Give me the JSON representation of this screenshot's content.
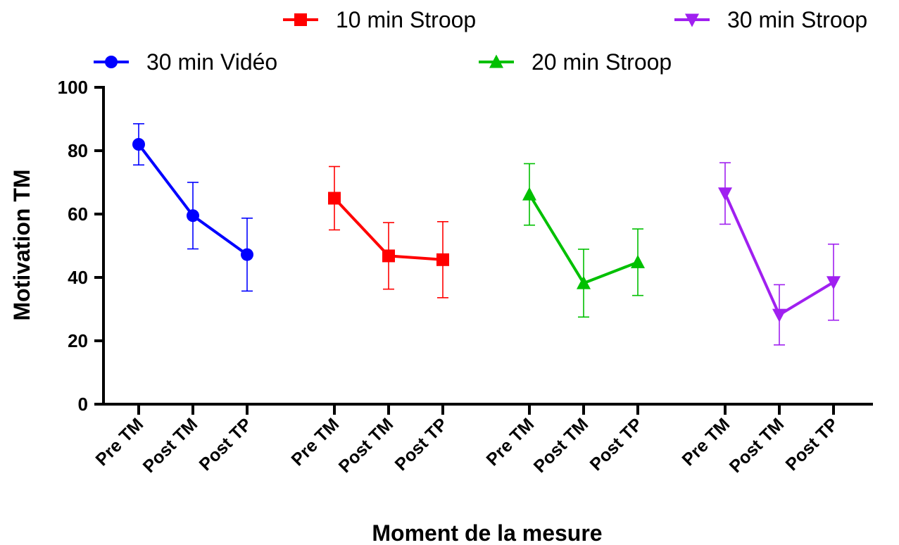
{
  "chart_data": {
    "type": "line",
    "xlabel": "Moment de la mesure",
    "ylabel": "Motivation TM",
    "ylim": [
      0,
      100
    ],
    "yticks": [
      0,
      20,
      40,
      60,
      80,
      100
    ],
    "categories": [
      "Pre TM",
      "Post TM",
      "Post TP"
    ],
    "legend_position": "top",
    "series": [
      {
        "name": "30 min Vidéo",
        "color": "#0000ff",
        "marker": "circle",
        "values": [
          82,
          59.5,
          47.2
        ],
        "error": [
          6.5,
          10.5,
          11.5
        ]
      },
      {
        "name": "10 min Stroop",
        "color": "#ff0000",
        "marker": "square",
        "values": [
          65,
          46.8,
          45.6
        ],
        "error": [
          10,
          10.5,
          12
        ]
      },
      {
        "name": "20 min Stroop",
        "color": "#00c000",
        "marker": "triangle-up",
        "values": [
          66.2,
          38.2,
          44.8
        ],
        "error": [
          9.7,
          10.7,
          10.5
        ]
      },
      {
        "name": "30 min Stroop",
        "color": "#a020f0",
        "marker": "triangle-down",
        "values": [
          66.5,
          28.2,
          38.5
        ],
        "error": [
          9.7,
          9.5,
          12
        ]
      }
    ]
  }
}
